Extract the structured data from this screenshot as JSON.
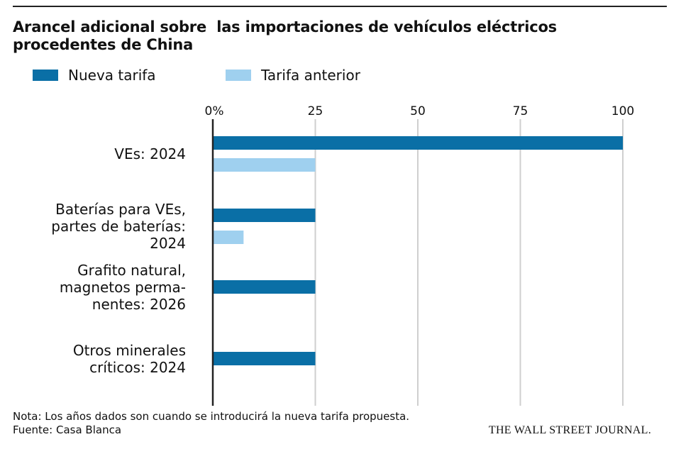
{
  "chart_data": {
    "type": "bar",
    "orientation": "horizontal",
    "title": "Arancel adicional sobre  las importaciones de vehículos eléctricos procedentes de China",
    "categories": [
      [
        "VEs: 2024"
      ],
      [
        "Baterías para VEs,",
        "partes de baterías:",
        "2024"
      ],
      [
        "Grafito natural,",
        "magnetos perma-",
        "nentes: 2026"
      ],
      [
        "Otros minerales",
        "críticos: 2024"
      ]
    ],
    "series": [
      {
        "name": "Nueva tarifa",
        "color": "#0a6fa6",
        "values": [
          100,
          25,
          25,
          25
        ]
      },
      {
        "name": "Tarifa anterior",
        "color": "#9fd0ef",
        "values": [
          25,
          7.5,
          0,
          0
        ]
      }
    ],
    "xlim": [
      0,
      100
    ],
    "xticks": [
      0,
      25,
      50,
      75,
      100
    ],
    "xtick_labels": [
      "0%",
      "25",
      "50",
      "75",
      "100"
    ],
    "grid": true,
    "legend_position": "top-left"
  },
  "footer": {
    "note": "Nota: Los años dados son cuando se introducirá la nueva tarifa propuesta.",
    "source": "Fuente: Casa Blanca",
    "publisher": "THE WALL STREET JOURNAL."
  }
}
